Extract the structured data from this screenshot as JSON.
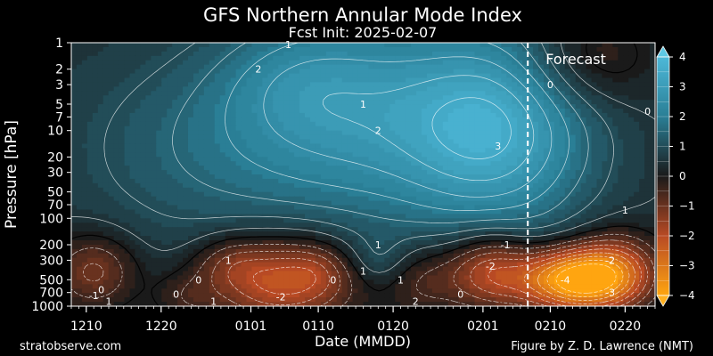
{
  "header": {
    "title": "GFS Northern Annular Mode Index",
    "subtitle": "Fcst Init: 2025-02-07"
  },
  "footer": {
    "left_credit": "stratobserve.com",
    "right_credit": "Figure by Z. D. Lawrence (NMT)"
  },
  "chart_data": {
    "type": "heatmap",
    "title": "GFS Northern Annular Mode Index",
    "subtitle": "Fcst Init: 2025-02-07",
    "xlabel": "Date (MMDD)",
    "ylabel": "Pressure [hPa]",
    "x_ticks": [
      "1210",
      "1220",
      "0101",
      "0110",
      "0120",
      "0201",
      "0210",
      "0220"
    ],
    "y_ticks": [
      1,
      2,
      3,
      5,
      7,
      10,
      20,
      30,
      50,
      70,
      100,
      200,
      300,
      500,
      700,
      1000
    ],
    "y_scale": "log",
    "y_inverted": true,
    "forecast_start": "0207",
    "forecast_label": "Forecast",
    "colorbar": {
      "ticks": [
        4,
        3,
        2,
        1,
        0,
        -1,
        -2,
        -3,
        -4
      ],
      "extend": "both",
      "colors": {
        "positive_max": "#4db8d8",
        "positive": "#2a7f96",
        "neutral": "#1a1a1a",
        "negative": "#b84a24",
        "negative_max": "#ffa510"
      }
    },
    "contour_labels": [
      {
        "value": "1",
        "date": "0106",
        "p": 1.05
      },
      {
        "value": "2",
        "date": "0102",
        "p": 2.0
      },
      {
        "value": "1",
        "date": "0116",
        "p": 5.0
      },
      {
        "value": "2",
        "date": "0118",
        "p": 10.0
      },
      {
        "value": "3",
        "date": "0203",
        "p": 15.0
      },
      {
        "value": "0",
        "date": "0210",
        "p": 3.0
      },
      {
        "value": "0",
        "date": "0223",
        "p": 6.0
      },
      {
        "value": "1",
        "date": "0220",
        "p": 80.0
      },
      {
        "value": "1",
        "date": "0118",
        "p": 200.0
      },
      {
        "value": "1",
        "date": "1229",
        "p": 300.0
      },
      {
        "value": "1",
        "date": "0116",
        "p": 400.0
      },
      {
        "value": "0",
        "date": "0112",
        "p": 500.0
      },
      {
        "value": "-1",
        "date": "0204",
        "p": 200.0
      },
      {
        "value": "-2",
        "date": "0202",
        "p": 350.0
      },
      {
        "value": "-4",
        "date": "0212",
        "p": 500.0
      },
      {
        "value": "-2",
        "date": "0218",
        "p": 300.0
      },
      {
        "value": "-3",
        "date": "0218",
        "p": 700.0
      },
      {
        "value": "-2",
        "date": "0105",
        "p": 780.0
      },
      {
        "value": "0",
        "date": "1212",
        "p": 650.0
      },
      {
        "value": "0",
        "date": "1222",
        "p": 730.0
      },
      {
        "value": "0",
        "date": "1225",
        "p": 500.0
      },
      {
        "value": "1",
        "date": "1213",
        "p": 880.0
      },
      {
        "value": "-1",
        "date": "1211",
        "p": 760.0
      },
      {
        "value": "1",
        "date": "1227",
        "p": 880.0
      },
      {
        "value": "1",
        "date": "0121",
        "p": 500.0
      },
      {
        "value": "2",
        "date": "0123",
        "p": 880.0
      },
      {
        "value": "0",
        "date": "0129",
        "p": 730.0
      }
    ]
  }
}
